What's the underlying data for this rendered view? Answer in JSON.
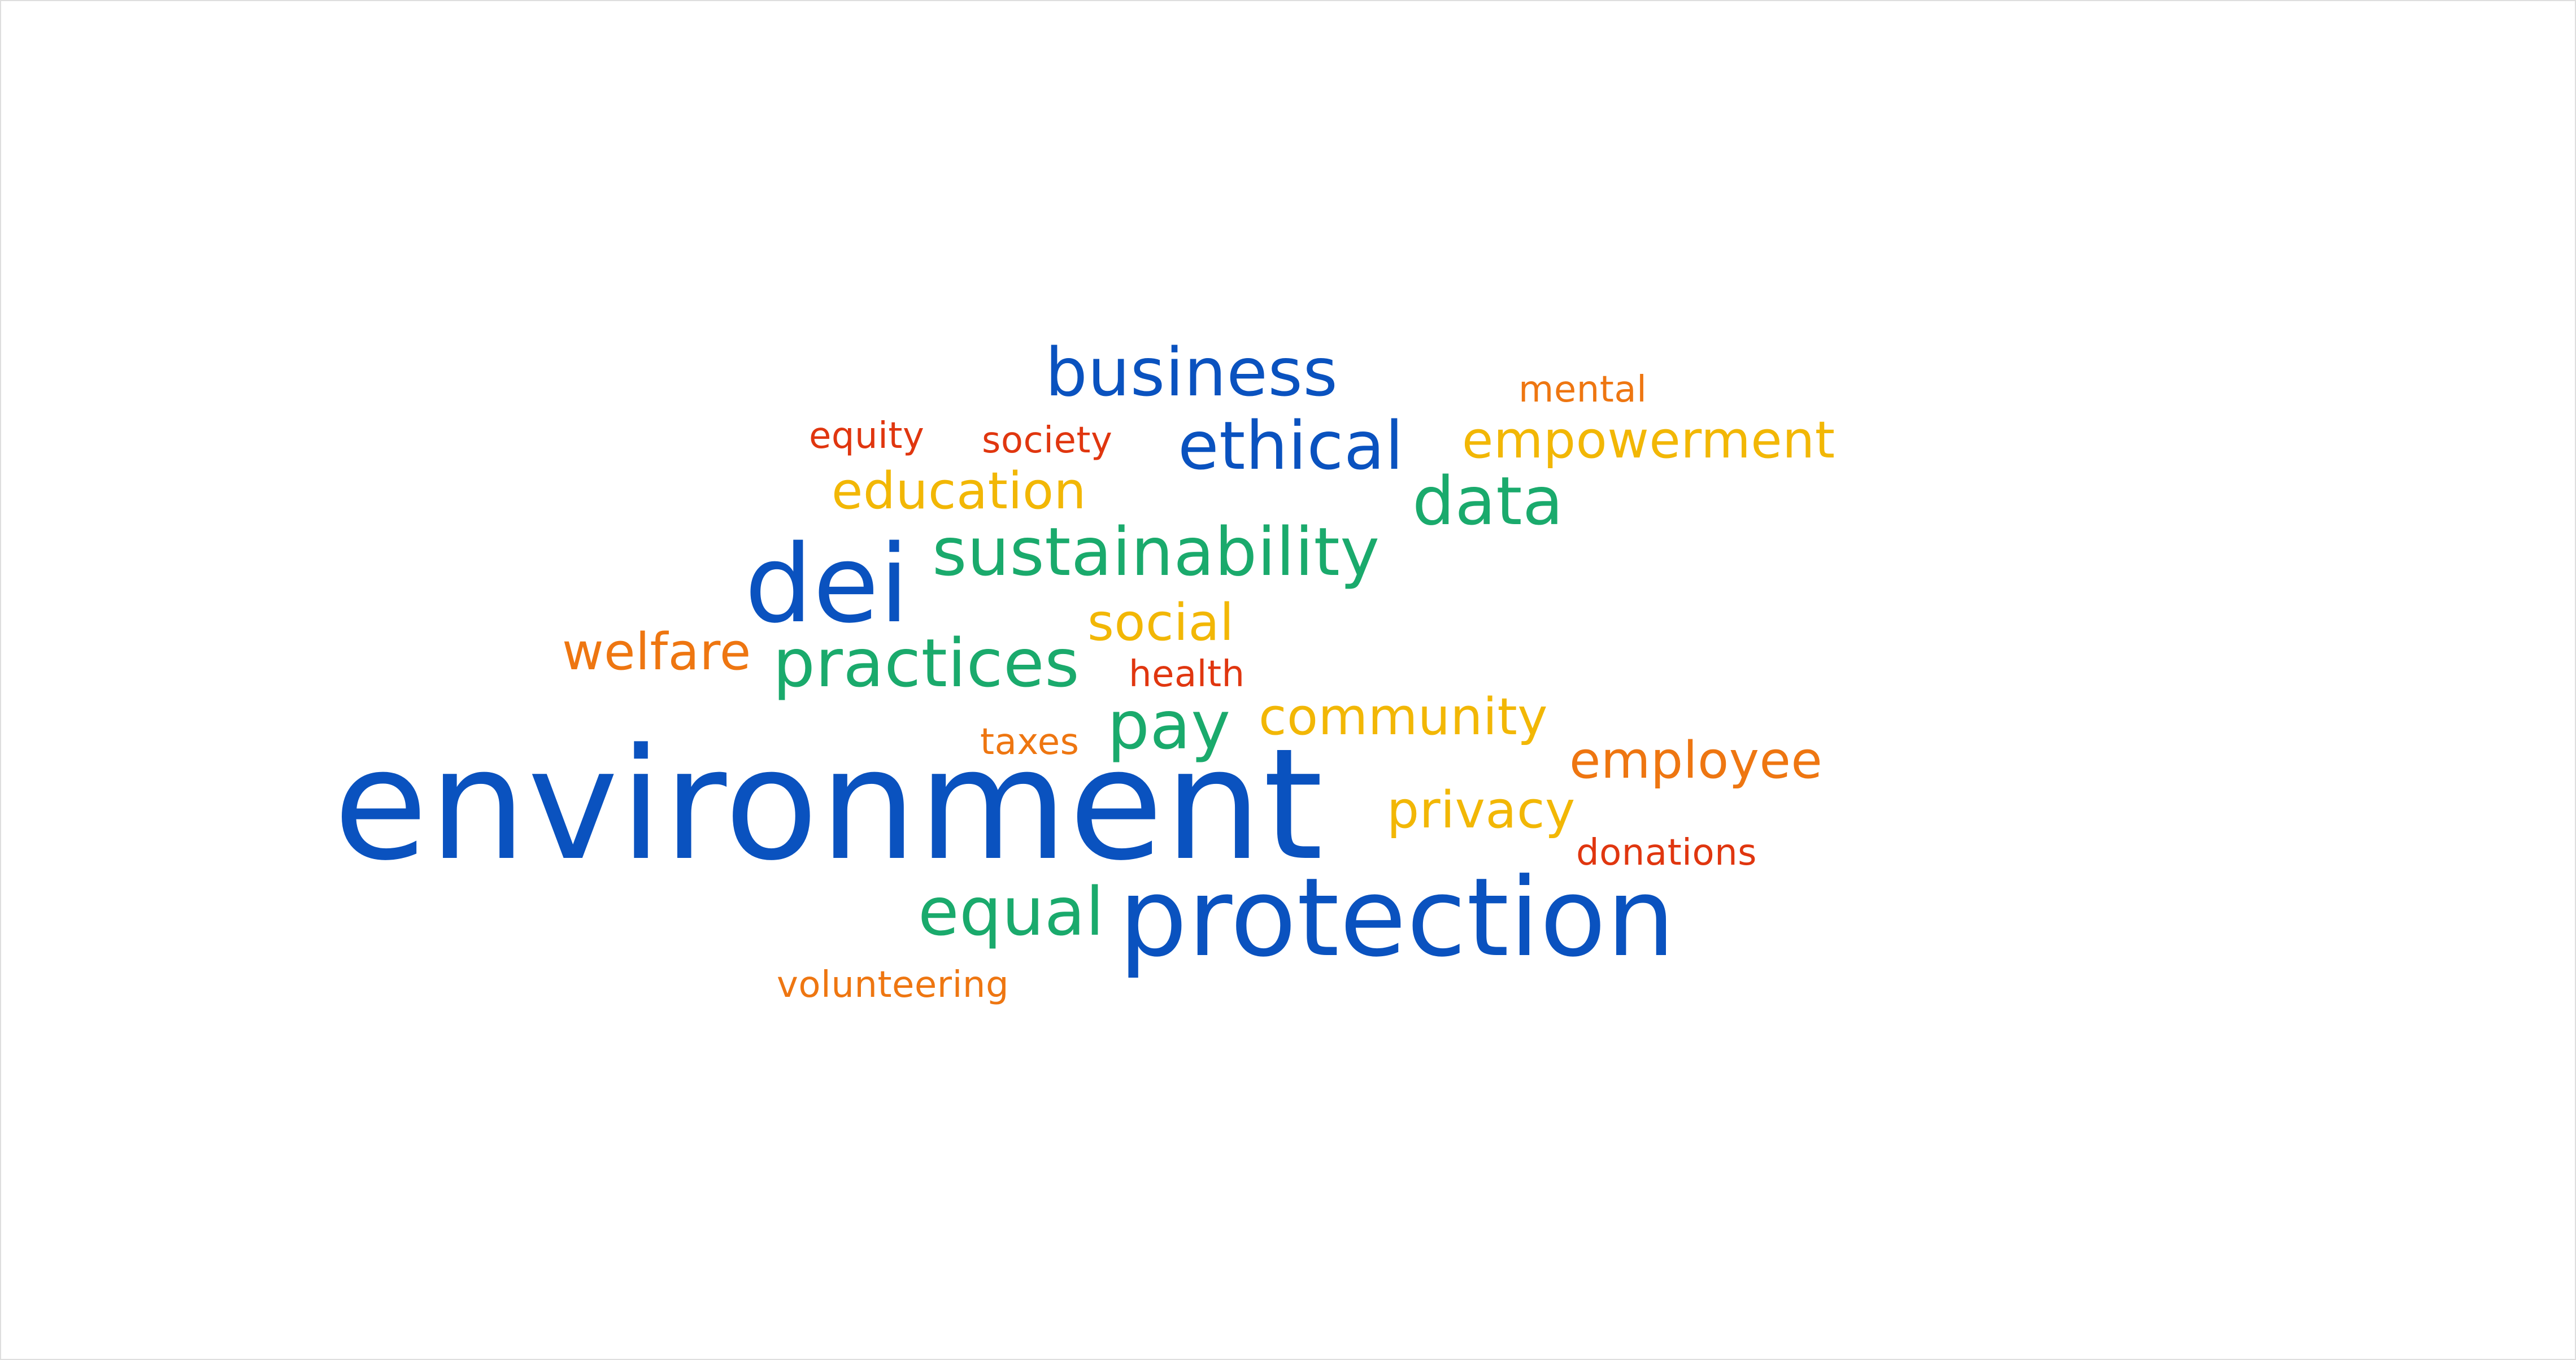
{
  "word_cloud": {
    "colors": {
      "blue": "#0a52bf",
      "green": "#1aaa6c",
      "yellow": "#f2b705",
      "orange": "#ee7611",
      "red": "#e0360f"
    },
    "words": [
      {
        "key": "environment",
        "text": "environment",
        "color": "#0a52bf"
      },
      {
        "key": "protection",
        "text": "protection",
        "color": "#0a52bf"
      },
      {
        "key": "dei",
        "text": "dei",
        "color": "#0a52bf"
      },
      {
        "key": "business",
        "text": "business",
        "color": "#0a52bf"
      },
      {
        "key": "ethical",
        "text": "ethical",
        "color": "#0a52bf"
      },
      {
        "key": "sustainability",
        "text": "sustainability",
        "color": "#1aaa6c"
      },
      {
        "key": "data",
        "text": "data",
        "color": "#1aaa6c"
      },
      {
        "key": "practices",
        "text": "practices",
        "color": "#1aaa6c"
      },
      {
        "key": "pay",
        "text": "pay",
        "color": "#1aaa6c"
      },
      {
        "key": "equal",
        "text": "equal",
        "color": "#1aaa6c"
      },
      {
        "key": "education",
        "text": "education",
        "color": "#f2b705"
      },
      {
        "key": "empowerment",
        "text": "empowerment",
        "color": "#f2b705"
      },
      {
        "key": "social",
        "text": "social",
        "color": "#f2b705"
      },
      {
        "key": "community",
        "text": "community",
        "color": "#f2b705"
      },
      {
        "key": "privacy",
        "text": "privacy",
        "color": "#f2b705"
      },
      {
        "key": "welfare",
        "text": "welfare",
        "color": "#ee7611"
      },
      {
        "key": "employee",
        "text": "employee",
        "color": "#ee7611"
      },
      {
        "key": "mental",
        "text": "mental",
        "color": "#ee7611"
      },
      {
        "key": "taxes",
        "text": "taxes",
        "color": "#ee7611"
      },
      {
        "key": "volunteering",
        "text": "volunteering",
        "color": "#ee7611"
      },
      {
        "key": "equity",
        "text": "equity",
        "color": "#e0360f"
      },
      {
        "key": "society",
        "text": "society",
        "color": "#e0360f"
      },
      {
        "key": "health",
        "text": "health",
        "color": "#e0360f"
      },
      {
        "key": "donations",
        "text": "donations",
        "color": "#e0360f"
      }
    ]
  }
}
